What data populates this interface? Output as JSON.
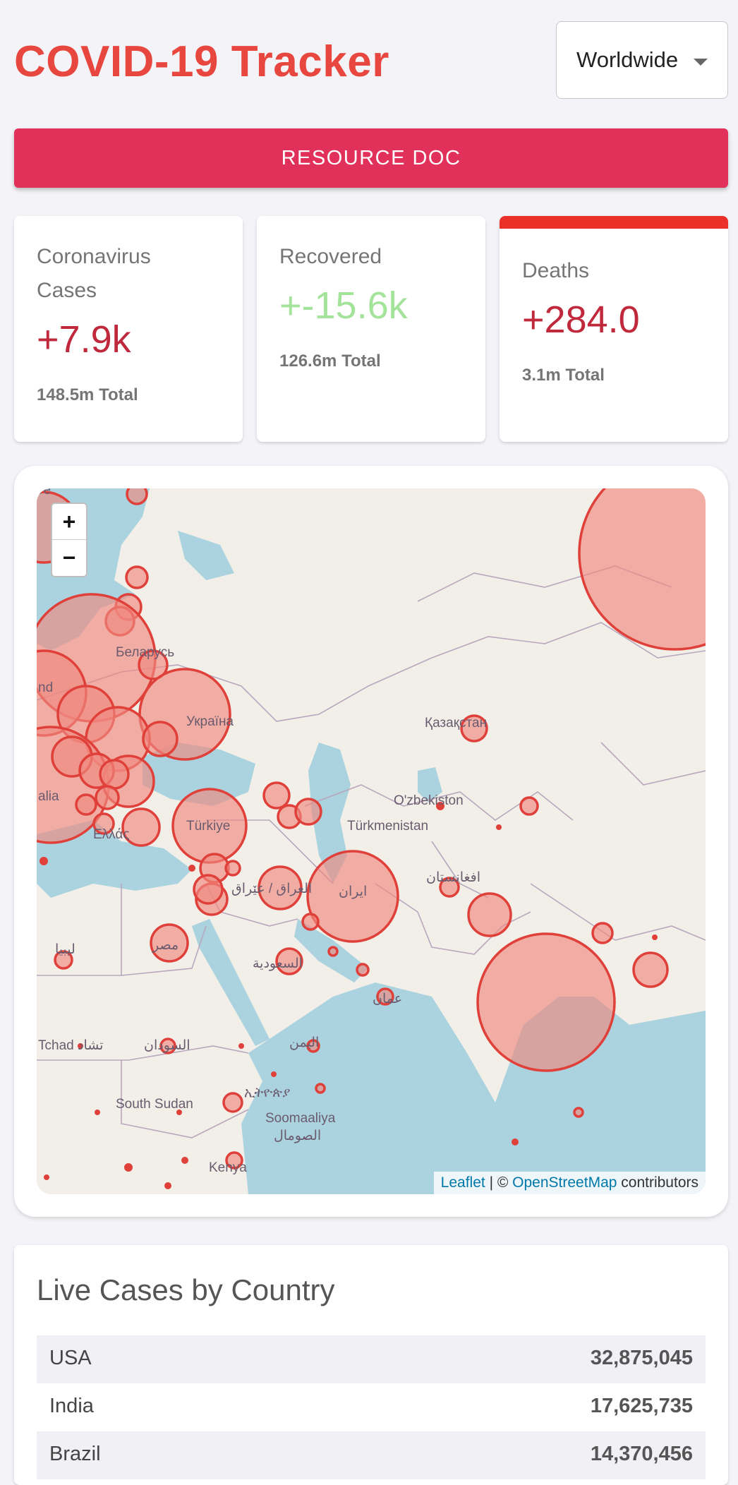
{
  "header": {
    "title": "COVID-19 Tracker",
    "country_select": "Worldwide"
  },
  "resource_button": "RESOURCE DOC",
  "stats": {
    "cases": {
      "label": "Coronavirus Cases",
      "value": "+7.9k",
      "total": "148.5m Total"
    },
    "recovered": {
      "label": "Recovered",
      "value": "+-15.6k",
      "total": "126.6m Total"
    },
    "deaths": {
      "label": "Deaths",
      "value": "+284.0",
      "total": "3.1m Total"
    }
  },
  "map": {
    "zoom_in": "+",
    "zoom_out": "−",
    "attribution": {
      "leaflet": "Leaflet",
      "sep": " | © ",
      "osm": "OpenStreetMap",
      "suffix": " contributors"
    },
    "labels": [
      "Беларусь",
      "Україна",
      "Қазақстан",
      "O'zbekiston",
      "Türkmenistan",
      "Türkiye",
      "Ελλάς",
      "ایران",
      "العراق / عێراق",
      "افغانستان",
      "مصر",
      "ليبيا",
      "السعودية",
      "عمان",
      "اليمن",
      "السودان",
      "Tchad تشاد",
      "South Sudan",
      "ኢትዮጵያ",
      "Soomaaliya",
      "الصومال",
      "Kenya",
      "nd",
      "alia",
      "ve"
    ],
    "colors": {
      "bubble_fill": "#f08880",
      "bubble_stroke": "#e0403a",
      "water": "#aad3df",
      "land": "#f2efe9"
    }
  },
  "table": {
    "title": "Live Cases by Country",
    "rows": [
      {
        "country": "USA",
        "cases": "32,875,045"
      },
      {
        "country": "India",
        "cases": "17,625,735"
      },
      {
        "country": "Brazil",
        "cases": "14,370,456"
      }
    ]
  }
}
